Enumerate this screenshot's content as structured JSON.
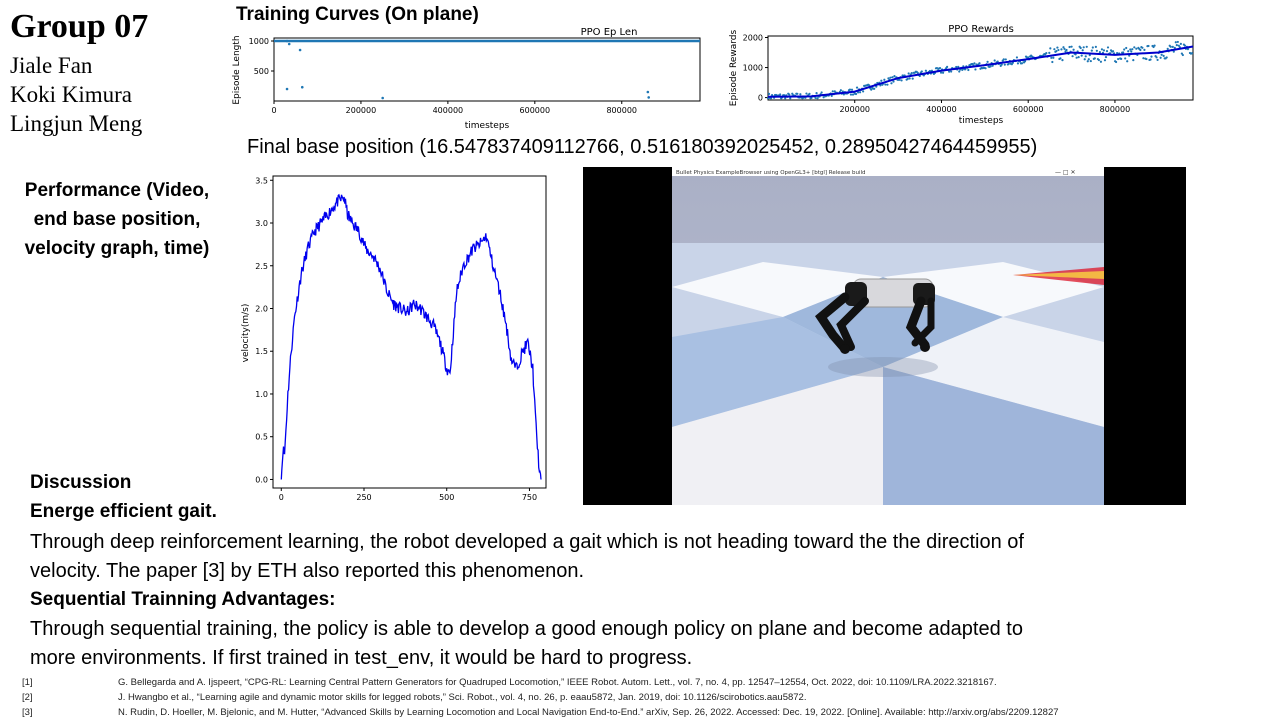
{
  "header": {
    "title": "Group 07",
    "authors": [
      "Jiale Fan",
      "Koki Kimura",
      "Lingjun Meng"
    ]
  },
  "training_section": {
    "heading": "Training Curves (On plane)"
  },
  "final_position": {
    "text": "Final base position (16.547837409112766,  0.516180392025452,  0.28950427464459955)"
  },
  "performance": {
    "lines": [
      "Performance (Video,",
      "end base position,",
      "velocity graph, time)"
    ]
  },
  "simulator": {
    "window_title": "Bullet Physics ExampleBrowser using OpenGL3+ [btgl] Release build"
  },
  "discussion": {
    "heading": "Discussion",
    "sub1": "Energe efficient gait.",
    "text1a": "Through deep reinforcement learning, the robot developed a gait which is not heading toward the the direction of",
    "text1b": "velocity. The paper [3] by ETH also reported this phenomenon.",
    "sub2": "Sequential Trainning Advantages:",
    "text2a": "Through sequential training, the policy is able to develop a good enough policy on plane and become adapted to",
    "text2b": "more environments. If first trained in test_env, it would be hard to progress."
  },
  "references": [
    {
      "num": "[1]",
      "text": "G. Bellegarda and A. Ijspeert, “CPG-RL: Learning Central Pattern Generators for Quadruped Locomotion,” IEEE Robot. Autom. Lett., vol. 7, no. 4, pp. 12547–12554,  Oct. 2022, doi: 10.1109/LRA.2022.3218167."
    },
    {
      "num": "[2]",
      "text": "J. Hwangbo et al., “Learning agile and dynamic motor skills for legged robots,” Sci. Robot., vol. 4, no. 26, p. eaau5872, Jan. 2019, doi: 10.1126/scirobotics.aau5872."
    },
    {
      "num": "[3]",
      "text": "N. Rudin, D. Hoeller, M. Bjelonic, and M. Hutter, “Advanced Skills by Learning Locomotion and Local Navigation End-to-End.” arXiv, Sep. 26, 2022.  Accessed: Dec. 19, 2022. [Online]. Available: http://arxiv.org/abs/2209.12827"
    }
  ],
  "colors": {
    "series": "#1f77b4",
    "velocity": "#0000ee",
    "trend": "#0000cc"
  },
  "chart_data": [
    {
      "id": "ep_len",
      "type": "scatter",
      "title": "PPO Ep Len",
      "xlabel": "timesteps",
      "ylabel": "Episode Length",
      "xlim": [
        0,
        980000
      ],
      "ylim": [
        0,
        1050
      ],
      "xticks": [
        0,
        200000,
        400000,
        600000,
        800000
      ],
      "yticks": [
        500,
        1000
      ],
      "outliers": [
        [
          30000,
          1000
        ],
        [
          35000,
          950
        ],
        [
          30000,
          200
        ],
        [
          60000,
          850
        ],
        [
          65000,
          230
        ],
        [
          250000,
          50
        ],
        [
          860000,
          150
        ],
        [
          862000,
          60
        ]
      ],
      "main_value": 1000
    },
    {
      "id": "rewards",
      "type": "scatter",
      "title": "PPO Rewards",
      "xlabel": "timesteps",
      "ylabel": "Episode Rewards",
      "xlim": [
        0,
        980000
      ],
      "ylim": [
        -80,
        2050
      ],
      "xticks": [
        200000,
        400000,
        600000,
        800000
      ],
      "yticks": [
        0,
        1000,
        2000
      ],
      "trend": [
        [
          0,
          30
        ],
        [
          100000,
          40
        ],
        [
          200000,
          200
        ],
        [
          300000,
          650
        ],
        [
          400000,
          900
        ],
        [
          500000,
          1080
        ],
        [
          600000,
          1280
        ],
        [
          700000,
          1500
        ],
        [
          800000,
          1420
        ],
        [
          900000,
          1500
        ],
        [
          980000,
          1700
        ]
      ]
    },
    {
      "id": "velocity",
      "type": "line",
      "title": "",
      "xlabel": "",
      "ylabel": "velocity(m/s)",
      "xlim": [
        -25,
        800
      ],
      "ylim": [
        -0.1,
        3.55
      ],
      "xticks": [
        0,
        250,
        500,
        750
      ],
      "yticks": [
        0.0,
        0.5,
        1.0,
        1.5,
        2.0,
        2.5,
        3.0,
        3.5
      ],
      "keypoints": [
        [
          0,
          0.0
        ],
        [
          5,
          0.35
        ],
        [
          10,
          0.3
        ],
        [
          20,
          1.0
        ],
        [
          30,
          1.5
        ],
        [
          40,
          1.9
        ],
        [
          60,
          2.4
        ],
        [
          80,
          2.7
        ],
        [
          100,
          2.9
        ],
        [
          120,
          3.0
        ],
        [
          150,
          3.15
        ],
        [
          170,
          3.25
        ],
        [
          190,
          3.3
        ],
        [
          200,
          3.1
        ],
        [
          215,
          3.0
        ],
        [
          235,
          2.9
        ],
        [
          255,
          2.7
        ],
        [
          280,
          2.6
        ],
        [
          300,
          2.45
        ],
        [
          320,
          2.2
        ],
        [
          340,
          2.05
        ],
        [
          360,
          2.0
        ],
        [
          380,
          1.95
        ],
        [
          400,
          2.05
        ],
        [
          420,
          2.0
        ],
        [
          440,
          1.9
        ],
        [
          460,
          1.8
        ],
        [
          480,
          1.6
        ],
        [
          500,
          1.3
        ],
        [
          510,
          1.25
        ],
        [
          530,
          2.2
        ],
        [
          550,
          2.5
        ],
        [
          580,
          2.7
        ],
        [
          600,
          2.75
        ],
        [
          620,
          2.85
        ],
        [
          640,
          2.5
        ],
        [
          660,
          2.2
        ],
        [
          680,
          1.8
        ],
        [
          695,
          1.4
        ],
        [
          710,
          1.3
        ],
        [
          730,
          1.5
        ],
        [
          745,
          1.6
        ],
        [
          760,
          1.3
        ],
        [
          770,
          0.6
        ],
        [
          780,
          0.1
        ],
        [
          785,
          0.0
        ]
      ]
    }
  ]
}
